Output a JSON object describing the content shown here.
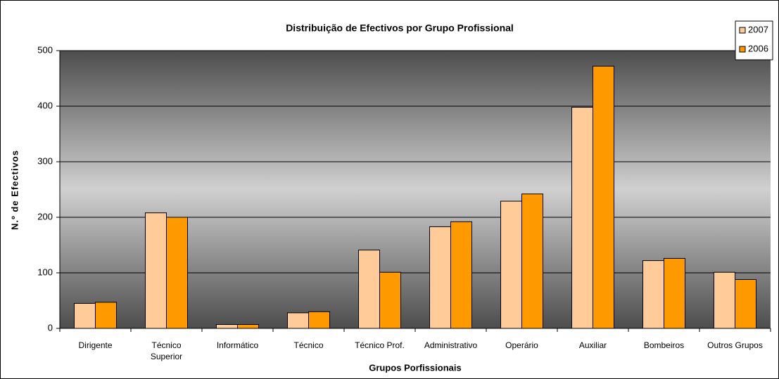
{
  "chart_data": {
    "type": "bar",
    "title": "Distribuição de Efectivos por Grupo Profissional",
    "x_label": "Grupos Porfissionais",
    "y_label": "N.º de Efectivos",
    "categories": [
      "Dirigente",
      "Técnico Superior",
      "Informático",
      "Técnico",
      "Técnico Prof.",
      "Administrativo",
      "Operário",
      "Auxiliar",
      "Bombeiros",
      "Outros Grupos"
    ],
    "series": [
      {
        "name": "2007",
        "color": "#ffcc99",
        "values": [
          45,
          208,
          7,
          28,
          141,
          183,
          229,
          398,
          122,
          101
        ]
      },
      {
        "name": "2006",
        "color": "#ff9900",
        "values": [
          47,
          200,
          7,
          30,
          101,
          192,
          242,
          472,
          126,
          88
        ]
      }
    ],
    "ylim": [
      0,
      500
    ],
    "yticks": [
      0,
      100,
      200,
      300,
      400,
      500
    ],
    "grid": true,
    "legend": "top-right"
  }
}
